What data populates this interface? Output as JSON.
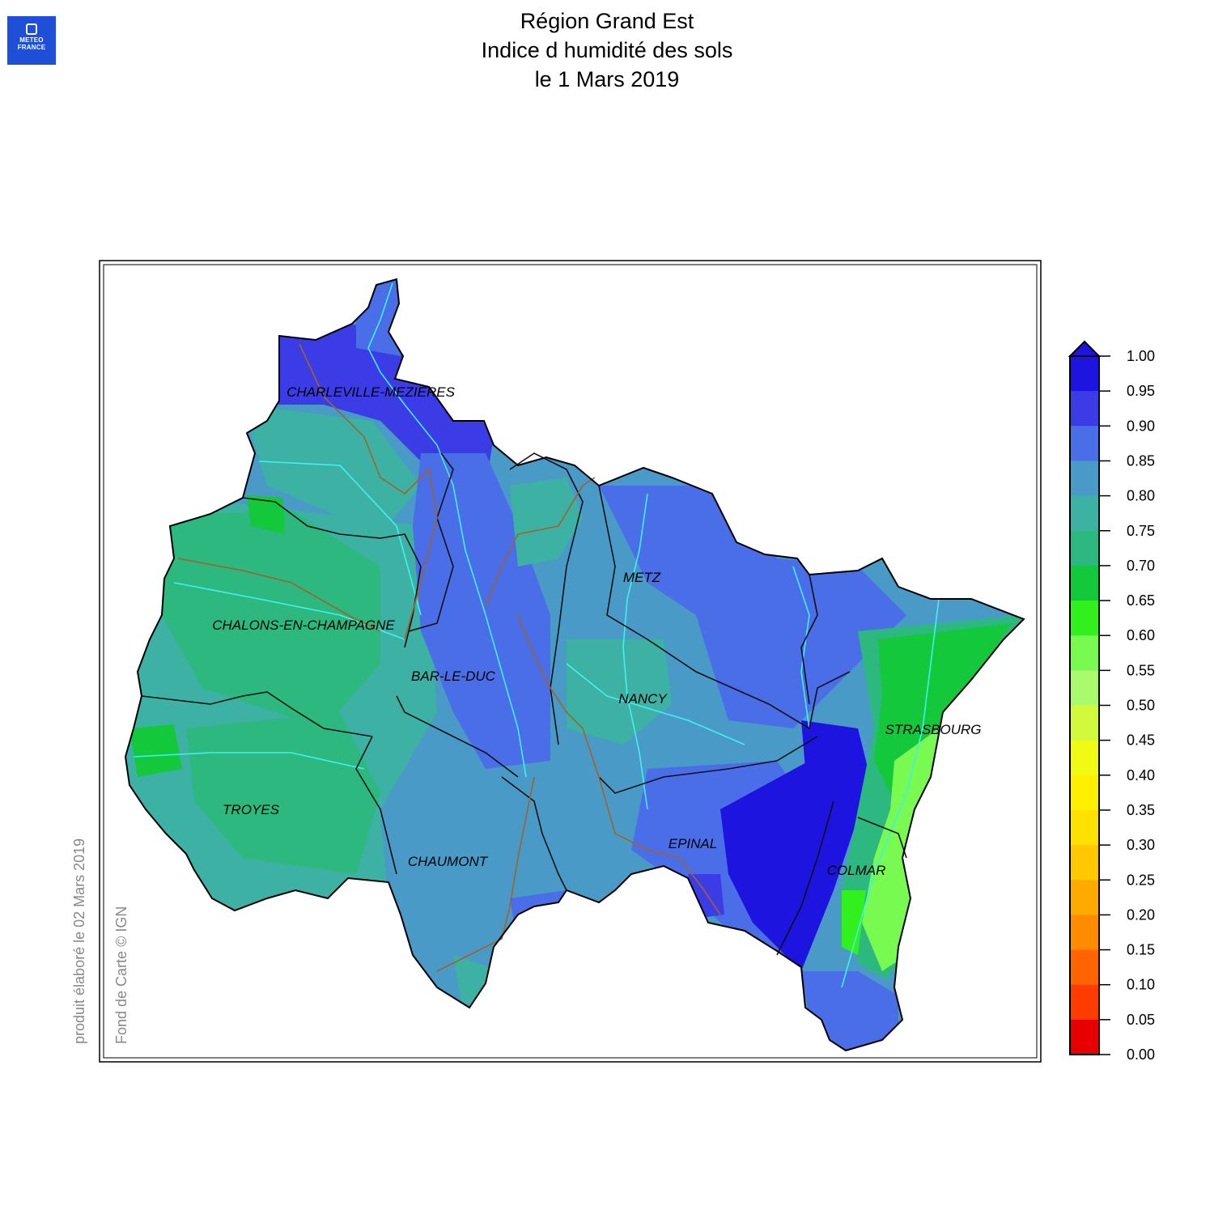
{
  "header": {
    "logo": {
      "line1": "METEO",
      "line2": "FRANCE"
    },
    "title_lines": [
      "Région Grand Est",
      "Indice d humidité des sols",
      "le 1 Mars 2019"
    ]
  },
  "map": {
    "cities": [
      "CHARLEVILLE-MEZIERES",
      "METZ",
      "CHALONS-EN-CHAMPAGNE",
      "BAR-LE-DUC",
      "NANCY",
      "STRASBOURG",
      "TROYES",
      "EPINAL",
      "CHAUMONT",
      "COLMAR"
    ],
    "credits": {
      "produced": "produit élaboré le 02 Mars 2019",
      "basemap": "Fond de Carte © IGN"
    }
  },
  "legend": {
    "ticks": [
      "1.00",
      "0.95",
      "0.90",
      "0.85",
      "0.80",
      "0.75",
      "0.70",
      "0.65",
      "0.60",
      "0.55",
      "0.50",
      "0.45",
      "0.40",
      "0.35",
      "0.30",
      "0.25",
      "0.20",
      "0.15",
      "0.10",
      "0.05",
      "0.00"
    ],
    "colors_top_to_bottom": [
      "#1e14e0",
      "#3c3ce6",
      "#4a6ee8",
      "#4a9ac8",
      "#3db2a4",
      "#2db880",
      "#14c83c",
      "#32f01e",
      "#78fa50",
      "#aafa6e",
      "#d2fa3c",
      "#f0fa14",
      "#fff000",
      "#ffe100",
      "#ffc800",
      "#ffaa00",
      "#ff8c00",
      "#ff6400",
      "#ff3c00",
      "#e60000"
    ],
    "overflow_color": "#1e14e0"
  }
}
